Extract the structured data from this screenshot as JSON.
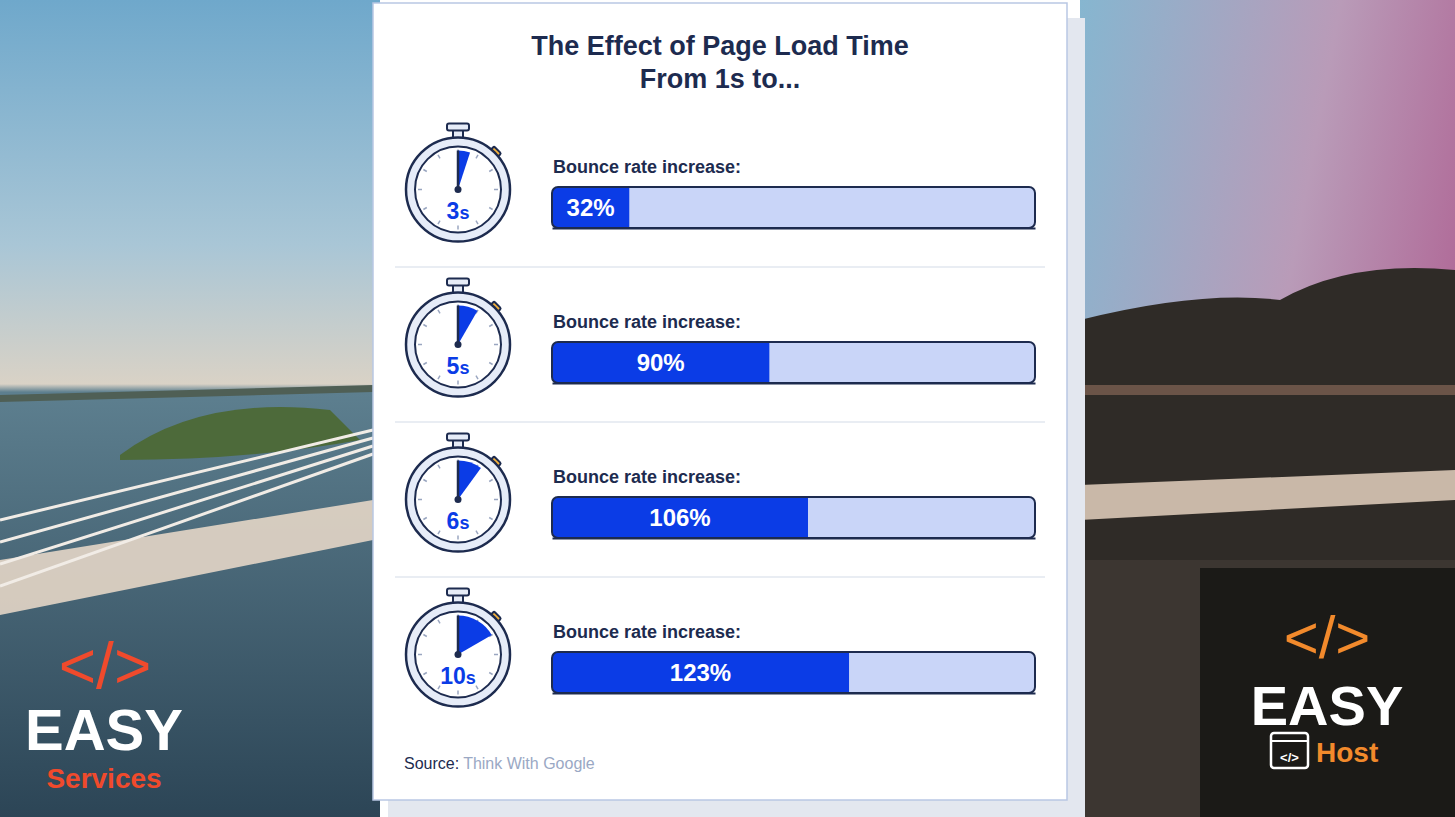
{
  "chart_data": {
    "type": "bar",
    "orientation": "horizontal",
    "title": [
      "The Effect of Page Load Time",
      "From 1s to..."
    ],
    "annotation": "Bounce rate increase:",
    "categories": [
      "3s",
      "5s",
      "6s",
      "10s"
    ],
    "values": [
      32,
      90,
      106,
      123
    ],
    "value_labels": [
      "32%",
      "90%",
      "106%",
      "123%"
    ],
    "data_labels": true,
    "color": "#0b3ce6",
    "xlim": [
      0,
      200
    ],
    "tick_labels": false,
    "source_label": "Source:",
    "source": "Think With Google"
  },
  "logos": [
    {
      "symbol": "</>",
      "brand": "EASY",
      "product": "Services"
    },
    {
      "symbol": "</>",
      "brand": "EASY",
      "icon": "</>",
      "product": "Host"
    }
  ]
}
